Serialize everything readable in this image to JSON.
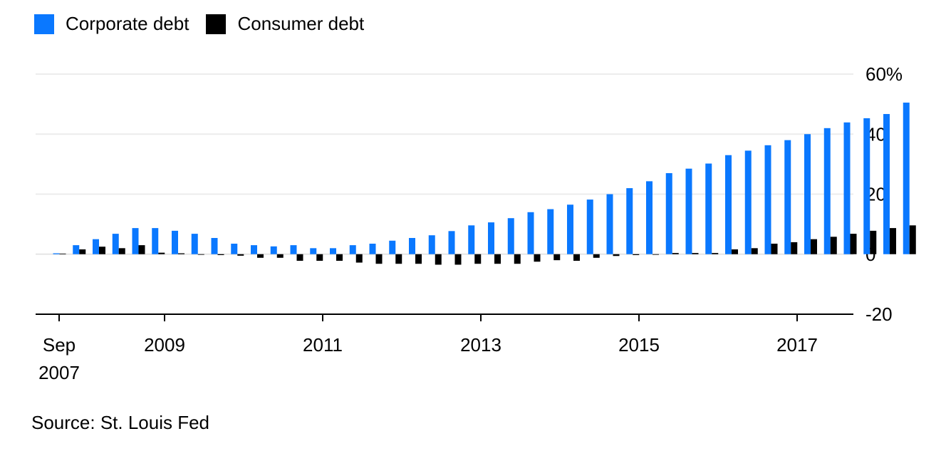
{
  "legend": {
    "series": [
      {
        "name": "Corporate debt",
        "color": "#0a78ff"
      },
      {
        "name": "Consumer debt",
        "color": "#000000"
      }
    ]
  },
  "source": "Source: St. Louis Fed",
  "chart_data": {
    "type": "bar",
    "ylim": [
      -20,
      60
    ],
    "y_ticks": [
      {
        "value": 60,
        "label": "60%"
      },
      {
        "value": 40,
        "label": "40"
      },
      {
        "value": 20,
        "label": "20"
      },
      {
        "value": 0,
        "label": "0"
      },
      {
        "value": -20,
        "label": "-20"
      }
    ],
    "x_ticks": [
      {
        "date": "2007-09",
        "label": [
          "Sep",
          "2007"
        ]
      },
      {
        "date": "2009-01",
        "label": [
          "2009"
        ]
      },
      {
        "date": "2011-01",
        "label": [
          "2011"
        ]
      },
      {
        "date": "2013-01",
        "label": [
          "2013"
        ]
      },
      {
        "date": "2015-01",
        "label": [
          "2015"
        ]
      },
      {
        "date": "2017-01",
        "label": [
          "2017"
        ]
      }
    ],
    "grid": true,
    "x": [
      "2007-09",
      "2007-12",
      "2008-03",
      "2008-06",
      "2008-09",
      "2008-12",
      "2009-03",
      "2009-06",
      "2009-09",
      "2009-12",
      "2010-03",
      "2010-06",
      "2010-09",
      "2010-12",
      "2011-03",
      "2011-06",
      "2011-09",
      "2011-12",
      "2012-03",
      "2012-06",
      "2012-09",
      "2012-12",
      "2013-03",
      "2013-06",
      "2013-09",
      "2013-12",
      "2014-03",
      "2014-06",
      "2014-09",
      "2014-12",
      "2015-03",
      "2015-06",
      "2015-09",
      "2015-12",
      "2016-03",
      "2016-06",
      "2016-09",
      "2016-12",
      "2017-03",
      "2017-06",
      "2017-09",
      "2017-12",
      "2018-03",
      "2018-06"
    ],
    "series": [
      {
        "name": "Corporate debt",
        "color": "#0a78ff",
        "values": [
          0.3,
          3,
          5,
          6.8,
          8.7,
          8.7,
          7.8,
          6.8,
          5.4,
          3.5,
          3,
          2.6,
          3,
          2,
          2,
          3,
          3.5,
          4.5,
          5.4,
          6.3,
          7.7,
          9.6,
          10.6,
          12,
          14,
          15,
          16.5,
          18.2,
          20,
          22,
          24.3,
          27,
          28.5,
          30.2,
          33,
          34.5,
          36.3,
          38,
          40,
          42,
          43.9,
          45.3,
          46.7,
          50.5
        ]
      },
      {
        "name": "Consumer debt",
        "color": "#000000",
        "values": [
          0.2,
          1.6,
          2.5,
          2,
          3,
          0.5,
          0.3,
          -0.2,
          -0.3,
          -0.5,
          -1.2,
          -1.2,
          -2.2,
          -2.2,
          -2.2,
          -2.8,
          -3.2,
          -3.2,
          -3.2,
          -3.5,
          -3.5,
          -3.2,
          -3.2,
          -3.2,
          -2.5,
          -2,
          -2.2,
          -1.2,
          -0.6,
          -0.3,
          -0.2,
          0.4,
          0.4,
          0.4,
          1.6,
          2,
          3.5,
          4,
          5,
          5.8,
          6.8,
          7.8,
          8.7,
          9.6
        ]
      }
    ]
  }
}
